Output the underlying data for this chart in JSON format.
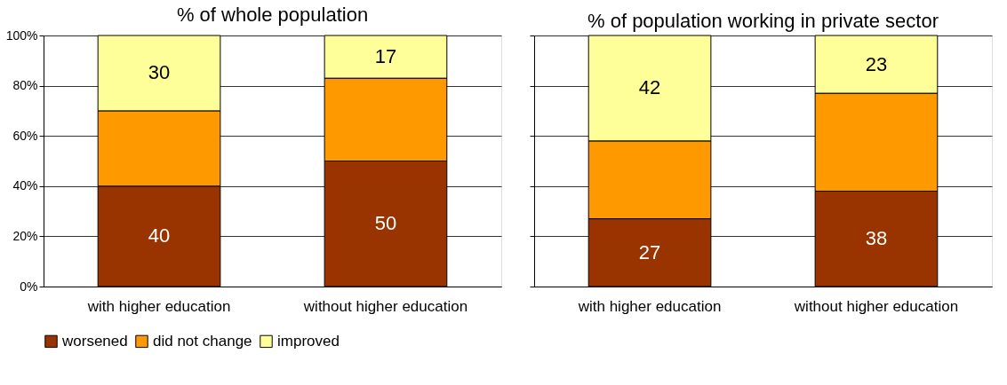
{
  "chart_data": [
    {
      "type": "bar",
      "title": "% of whole population",
      "categories": [
        "with higher education",
        "without higher education"
      ],
      "stacked": true,
      "ylim": [
        0,
        100
      ],
      "yticks": [
        {
          "value": 0,
          "label": "0%"
        },
        {
          "value": 20,
          "label": "20%"
        },
        {
          "value": 40,
          "label": "40%"
        },
        {
          "value": 60,
          "label": "60%"
        },
        {
          "value": 80,
          "label": "80%"
        },
        {
          "value": 100,
          "label": "100%"
        }
      ],
      "grid": "y",
      "legend": "bottom",
      "series": [
        {
          "name": "worsened",
          "color": "#993300",
          "values": [
            40,
            50
          ],
          "value_labels": [
            "40",
            "50"
          ]
        },
        {
          "name": "did not change",
          "color": "#ff9900",
          "values": [
            30,
            33
          ],
          "value_labels": [
            null,
            null
          ]
        },
        {
          "name": "improved",
          "color": "#ffff99",
          "values": [
            30,
            17
          ],
          "value_labels": [
            "30",
            "17"
          ]
        }
      ]
    },
    {
      "type": "bar",
      "title": "% of population working in private sector",
      "categories": [
        "with higher education",
        "without higher education"
      ],
      "stacked": true,
      "ylim": [
        0,
        100
      ],
      "yticks": [
        0,
        20,
        40,
        60,
        80,
        100
      ],
      "tick_labels": "x",
      "grid": "y",
      "legend": "bottom",
      "series": [
        {
          "name": "worsened",
          "color": "#993300",
          "values": [
            27,
            38
          ],
          "value_labels": [
            "27",
            "38"
          ]
        },
        {
          "name": "did not change",
          "color": "#ff9900",
          "values": [
            31,
            39
          ],
          "value_labels": [
            null,
            null
          ]
        },
        {
          "name": "improved",
          "color": "#ffff99",
          "values": [
            42,
            23
          ],
          "value_labels": [
            "42",
            "23"
          ]
        }
      ]
    }
  ]
}
